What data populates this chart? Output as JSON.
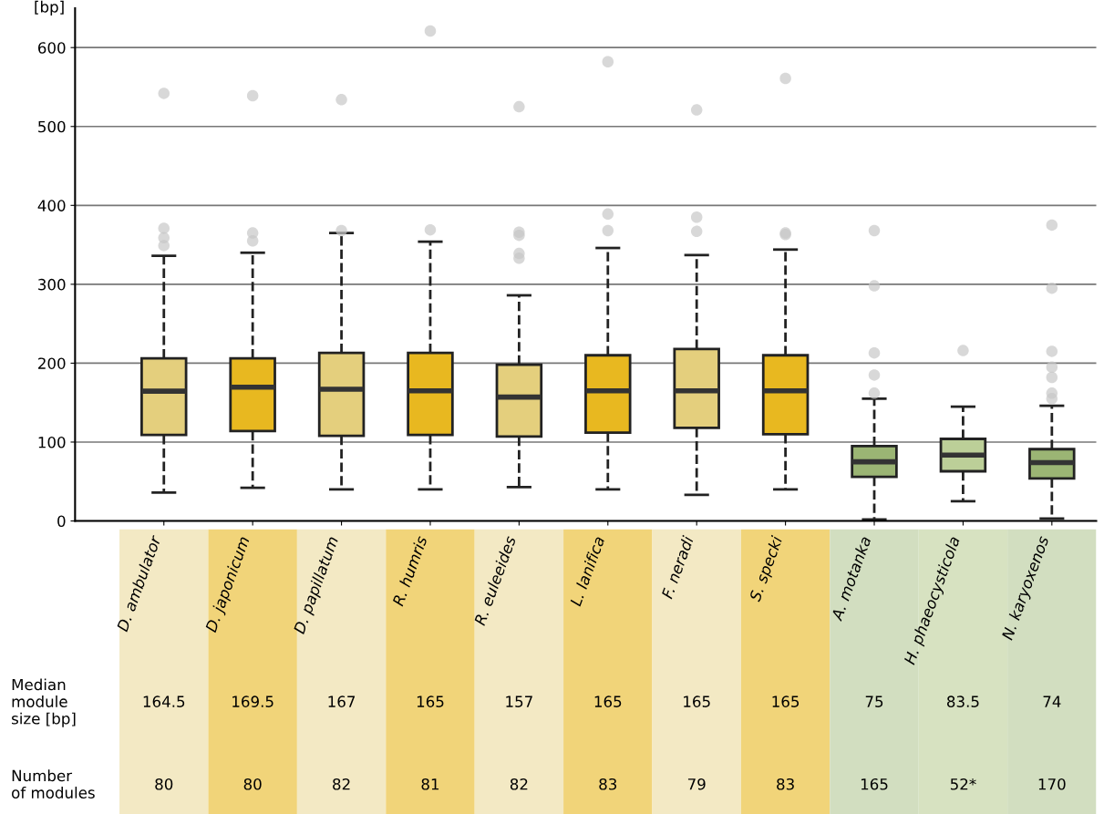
{
  "chart_data": {
    "type": "box",
    "ylabel": "[bp]",
    "categories": [
      "D. ambulator",
      "D. japonicum",
      "D. papillatum",
      "R. humris",
      "R. euleeides",
      "L. lanifica",
      "F. neradi",
      "S. specki",
      "A. motanka",
      "H. phaeocysticola",
      "N. karyoxenos"
    ],
    "colors": [
      "#e4cf7d",
      "#e8b820",
      "#e4cf7d",
      "#e8b820",
      "#e4cf7d",
      "#e8b820",
      "#e4cf7d",
      "#e8b820",
      "#9bb574",
      "#bccf98",
      "#9bb574"
    ],
    "boxes": [
      {
        "low": 36,
        "q1": 109,
        "median": 164.5,
        "q3": 206,
        "high": 336,
        "outliers": [
          349,
          359,
          371,
          542
        ]
      },
      {
        "low": 42,
        "q1": 114,
        "median": 169.5,
        "q3": 206,
        "high": 340,
        "outliers": [
          355,
          365,
          539
        ]
      },
      {
        "low": 40,
        "q1": 108,
        "median": 167,
        "q3": 213,
        "high": 365,
        "outliers": [
          368,
          534
        ]
      },
      {
        "low": 40,
        "q1": 109,
        "median": 165,
        "q3": 213,
        "high": 354,
        "outliers": [
          369,
          621
        ]
      },
      {
        "low": 43,
        "q1": 107,
        "median": 157,
        "q3": 198,
        "high": 286,
        "outliers": [
          333,
          339,
          362,
          366,
          525
        ]
      },
      {
        "low": 40,
        "q1": 112,
        "median": 165,
        "q3": 210,
        "high": 346,
        "outliers": [
          368,
          389,
          582
        ]
      },
      {
        "low": 33,
        "q1": 118,
        "median": 165,
        "q3": 218,
        "high": 337,
        "outliers": [
          367,
          385,
          521
        ]
      },
      {
        "low": 40,
        "q1": 110,
        "median": 165,
        "q3": 210,
        "high": 344,
        "outliers": [
          363,
          365,
          561
        ]
      },
      {
        "low": 2,
        "q1": 56,
        "median": 75,
        "q3": 95,
        "high": 155,
        "outliers": [
          162,
          185,
          213,
          298,
          368
        ]
      },
      {
        "low": 25,
        "q1": 63,
        "median": 83.5,
        "q3": 104,
        "high": 145,
        "outliers": [
          216
        ]
      },
      {
        "low": 3,
        "q1": 54,
        "median": 74,
        "q3": 91,
        "high": 146,
        "outliers": [
          155,
          162,
          182,
          195,
          215,
          295,
          375
        ]
      }
    ],
    "value_labels": [
      "164.5",
      "169.5",
      "167",
      "165",
      "157",
      "165",
      "165",
      "165",
      "75",
      "83.5",
      "74"
    ],
    "annotations": [
      "Median\nmodule\nsize [bp]",
      "Number\nof modules",
      "80",
      "80",
      "82",
      "81",
      "82",
      "83",
      "79",
      "83",
      "165",
      "52*",
      "170"
    ],
    "ylim": [
      0,
      650
    ],
    "yticks": [
      0,
      100,
      200,
      300,
      400,
      500,
      600
    ],
    "grid": "y"
  }
}
